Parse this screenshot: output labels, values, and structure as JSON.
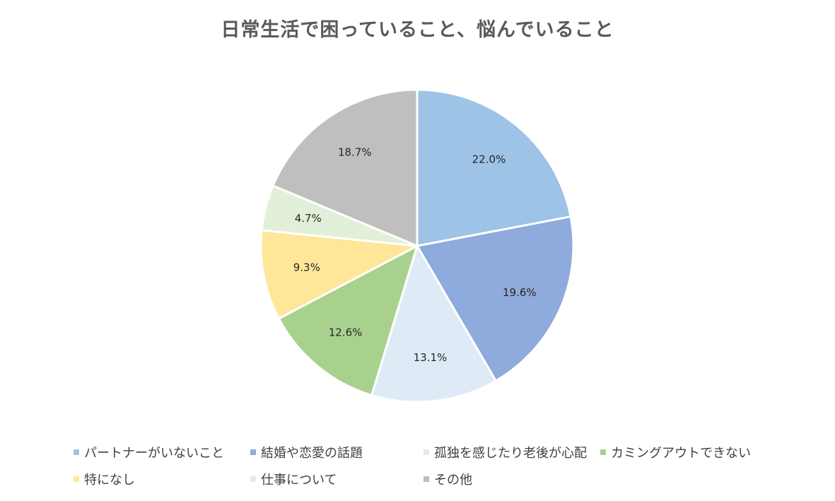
{
  "chart_data": {
    "type": "pie",
    "title": "日常生活で困っていること、悩んでいること",
    "start_angle_deg": 0,
    "direction": "clockwise",
    "legend_position": "bottom",
    "slices": [
      {
        "label": "パートナーがいないこと",
        "value": 22.0,
        "display": "22.0%",
        "color": "#9DC3E6"
      },
      {
        "label": "結婚や恋愛の話題",
        "value": 19.6,
        "display": "19.6%",
        "color": "#8FAADC"
      },
      {
        "label": "孤独を感じたり老後が心配",
        "value": 13.1,
        "display": "13.1%",
        "color": "#DEEBF7"
      },
      {
        "label": "カミングアウトできない",
        "value": 12.6,
        "display": "12.6%",
        "color": "#A9D18E"
      },
      {
        "label": "特になし",
        "value": 9.3,
        "display": "9.3%",
        "color": "#FFE699"
      },
      {
        "label": "仕事について",
        "value": 4.7,
        "display": "4.7%",
        "color": "#E2F0D9"
      },
      {
        "label": "その他",
        "value": 18.7,
        "display": "18.7%",
        "color": "#BFBFBF"
      }
    ]
  }
}
